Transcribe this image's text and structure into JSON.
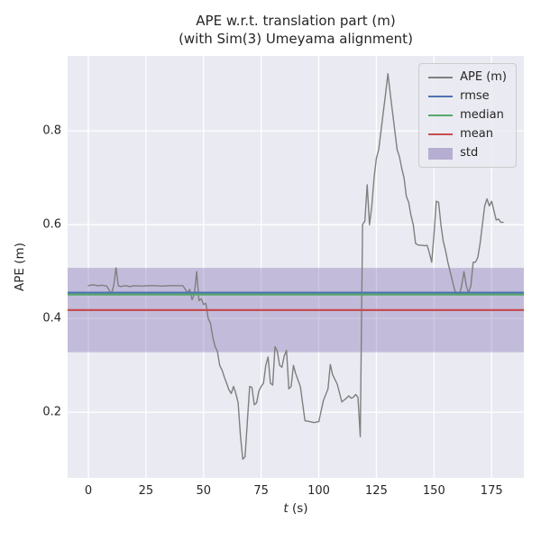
{
  "title": "APE w.r.t. translation part (m)",
  "subtitle": "(with Sim(3) Umeyama alignment)",
  "ylabel": "APE (m)",
  "xlabel_italic": "t",
  "xlabel_rest": " (s)",
  "chart_data": {
    "type": "line",
    "title": "APE w.r.t. translation part (m)",
    "subtitle": "(with Sim(3) Umeyama alignment)",
    "xlabel": "t (s)",
    "ylabel": "APE (m)",
    "xlim": [
      -9,
      189
    ],
    "ylim": [
      0.06,
      0.96
    ],
    "xticks": [
      0,
      25,
      50,
      75,
      100,
      125,
      150,
      175
    ],
    "yticks": [
      0.2,
      0.4,
      0.6,
      0.8
    ],
    "grid": true,
    "legend_position": "upper right",
    "colors": {
      "ape": "#7f7f7f",
      "rmse": "#4c72b0",
      "median": "#55a868",
      "mean": "#c44e52",
      "std": "#8172b2",
      "axes_bg": "#eaeaf2",
      "grid": "#ffffff",
      "text": "#262626"
    },
    "stats": {
      "rmse": 0.455,
      "median": 0.451,
      "mean": 0.418,
      "std_band": [
        0.328,
        0.508
      ]
    },
    "legend": [
      {
        "label": "APE (m)",
        "swatch": "line",
        "color_key": "ape"
      },
      {
        "label": "rmse",
        "swatch": "line",
        "color_key": "rmse"
      },
      {
        "label": "median",
        "swatch": "line",
        "color_key": "median"
      },
      {
        "label": "mean",
        "swatch": "line",
        "color_key": "mean"
      },
      {
        "label": "std",
        "swatch": "patch",
        "color_key": "std"
      }
    ],
    "series": [
      {
        "name": "APE (m)",
        "t": [
          0,
          2,
          4,
          6,
          8,
          10,
          11,
          12,
          13,
          14,
          16,
          18,
          20,
          23,
          26,
          29,
          32,
          35,
          38,
          41,
          43,
          44,
          45,
          46,
          47,
          48,
          49,
          50,
          51,
          52,
          53,
          54,
          55,
          56,
          57,
          58,
          59,
          60,
          61,
          62,
          63,
          64,
          65,
          66,
          67,
          68,
          69,
          70,
          71,
          72,
          73,
          74,
          75,
          76,
          77,
          78,
          79,
          80,
          81,
          82,
          83,
          84,
          85,
          86,
          87,
          88,
          89,
          90,
          92,
          94,
          96,
          98,
          100,
          102,
          104,
          105,
          106,
          108,
          110,
          112,
          113,
          114,
          115,
          116,
          117,
          118,
          119,
          120,
          121,
          122,
          123,
          124,
          125,
          126,
          127,
          128,
          129,
          130,
          131,
          132,
          133,
          134,
          135,
          136,
          137,
          138,
          139,
          140,
          141,
          142,
          143,
          144,
          145,
          146,
          147,
          148,
          149,
          150,
          151,
          152,
          153,
          154,
          155,
          156,
          157,
          158,
          159,
          160,
          161,
          162,
          163,
          164,
          165,
          166,
          167,
          168,
          169,
          170,
          171,
          172,
          173,
          174,
          175,
          176,
          177,
          178,
          179,
          180
        ],
        "y": [
          0.47,
          0.472,
          0.47,
          0.471,
          0.469,
          0.452,
          0.47,
          0.508,
          0.47,
          0.468,
          0.47,
          0.468,
          0.47,
          0.469,
          0.47,
          0.47,
          0.469,
          0.47,
          0.47,
          0.47,
          0.455,
          0.462,
          0.44,
          0.452,
          0.5,
          0.438,
          0.442,
          0.43,
          0.432,
          0.4,
          0.39,
          0.36,
          0.34,
          0.33,
          0.3,
          0.29,
          0.275,
          0.262,
          0.248,
          0.24,
          0.255,
          0.24,
          0.22,
          0.15,
          0.1,
          0.105,
          0.18,
          0.255,
          0.253,
          0.216,
          0.22,
          0.245,
          0.255,
          0.262,
          0.3,
          0.318,
          0.262,
          0.258,
          0.34,
          0.33,
          0.3,
          0.296,
          0.32,
          0.332,
          0.25,
          0.255,
          0.3,
          0.282,
          0.255,
          0.182,
          0.18,
          0.178,
          0.18,
          0.225,
          0.25,
          0.302,
          0.28,
          0.26,
          0.222,
          0.23,
          0.235,
          0.23,
          0.232,
          0.238,
          0.232,
          0.148,
          0.6,
          0.608,
          0.685,
          0.6,
          0.64,
          0.7,
          0.742,
          0.76,
          0.8,
          0.84,
          0.88,
          0.922,
          0.88,
          0.84,
          0.8,
          0.76,
          0.745,
          0.72,
          0.7,
          0.66,
          0.648,
          0.62,
          0.6,
          0.56,
          0.557,
          0.556,
          0.556,
          0.555,
          0.556,
          0.54,
          0.52,
          0.58,
          0.65,
          0.648,
          0.6,
          0.565,
          0.545,
          0.52,
          0.5,
          0.48,
          0.46,
          0.452,
          0.45,
          0.47,
          0.5,
          0.47,
          0.455,
          0.47,
          0.52,
          0.52,
          0.53,
          0.56,
          0.6,
          0.64,
          0.655,
          0.64,
          0.65,
          0.63,
          0.61,
          0.612,
          0.605,
          0.605
        ]
      }
    ]
  }
}
